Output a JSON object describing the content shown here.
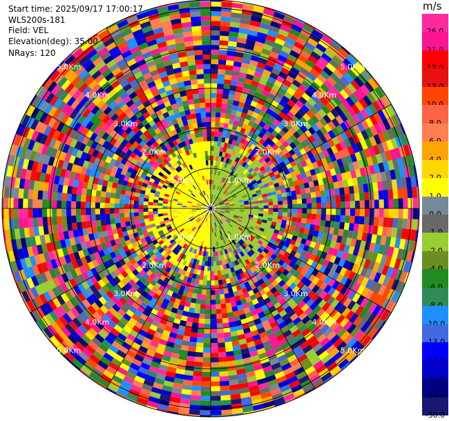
{
  "header": {
    "start_time": "Start time: 2025/09/17 17:00:17",
    "instrument": "WLS200s-181",
    "field": "Field: VEL",
    "elevation": "Elevation(deg): 35.00",
    "nrays": "NRays: 120"
  },
  "colorbar": {
    "unit": "m/s",
    "levels": [
      "26.0",
      "21.0",
      "17.0",
      "13.0",
      "10.0",
      "8.0",
      "6.0",
      "4.0",
      "2.0",
      "1.0",
      "0.0",
      "-1.0",
      "-2.0",
      "-4.0",
      "-6.0",
      "-8.0",
      "-10.0",
      "-13.0",
      "-17.0",
      "-21.0",
      "-26.0",
      "-30.0"
    ],
    "colors": [
      "#ff2aa0",
      "#ff1493",
      "#ff0000",
      "#e81010",
      "#ff4500",
      "#ff6347",
      "#ff7f50",
      "#ffa500",
      "#ffd700",
      "#ffff00",
      "#778899",
      "#696969",
      "#9acd32",
      "#6b8e23",
      "#228b22",
      "#2e8b57",
      "#1e90ff",
      "#4169e1",
      "#0000ff",
      "#0000cd",
      "#000080",
      "#191970"
    ]
  },
  "chart_data": {
    "type": "heatmap",
    "projection": "polar-ppi",
    "field": "VEL",
    "nrays": 120,
    "elevation_deg": 35.0,
    "range_rings_km": [
      1.0,
      2.0,
      3.0,
      4.0,
      5.0
    ],
    "ring_labels": [
      "1.0Km",
      "2.0Km",
      "3.0Km",
      "4.0Km",
      "5.0Km"
    ],
    "label_directions": [
      "ne",
      "nw",
      "se",
      "sw"
    ],
    "max_range_km": 5.2,
    "near_field_km": 1.0,
    "near_field_description_colors": [
      "#ffff00",
      "#9acd32"
    ]
  }
}
